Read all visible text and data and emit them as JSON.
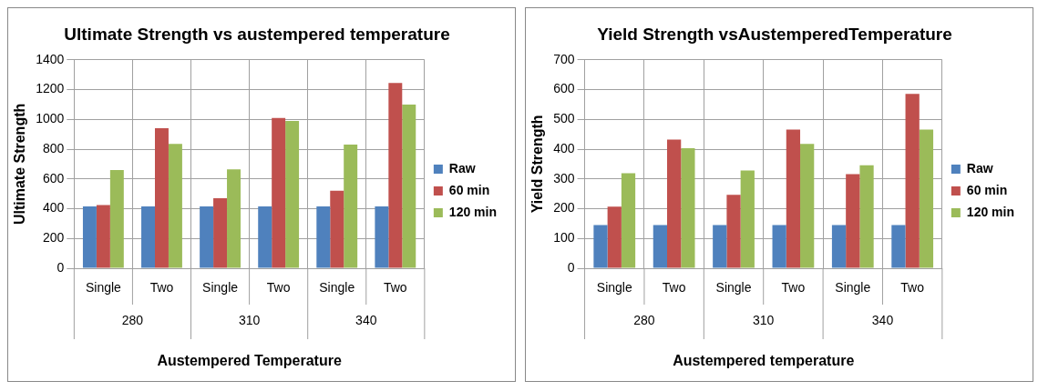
{
  "chart_data": [
    {
      "type": "bar",
      "title": "Ultimate Strength vs austempered temperature",
      "xlabel": "Austempered Temperature",
      "ylabel": "Ultimate Strength",
      "categories": [
        "Single",
        "Two",
        "Single",
        "Two",
        "Single",
        "Two"
      ],
      "annotations": [
        "280",
        "310",
        "340"
      ],
      "series": [
        {
          "name": "Raw",
          "color": "#4f81bd",
          "values": [
            415,
            415,
            415,
            415,
            415,
            415
          ]
        },
        {
          "name": "60 min",
          "color": "#c0504d",
          "values": [
            425,
            940,
            470,
            1010,
            520,
            1245
          ]
        },
        {
          "name": "120 min",
          "color": "#9bbb59",
          "values": [
            660,
            835,
            665,
            990,
            830,
            1100
          ]
        }
      ],
      "ylim": [
        0,
        1400
      ],
      "yticks": [
        0,
        200,
        400,
        600,
        800,
        1000,
        1200,
        1400
      ],
      "grid": true,
      "legend": "right"
    },
    {
      "type": "bar",
      "title": "Yield Strength vsAustemperedTemperature",
      "xlabel": "Austempered temperature",
      "ylabel": "Yield Strength",
      "categories": [
        "Single",
        "Two",
        "Single",
        "Two",
        "Single",
        "Two"
      ],
      "annotations": [
        "280",
        "310",
        "340"
      ],
      "series": [
        {
          "name": "Raw",
          "color": "#4f81bd",
          "values": [
            145,
            145,
            145,
            145,
            145,
            145
          ]
        },
        {
          "name": "60 min",
          "color": "#c0504d",
          "values": [
            207,
            432,
            247,
            466,
            316,
            586
          ]
        },
        {
          "name": "120 min",
          "color": "#9bbb59",
          "values": [
            319,
            403,
            328,
            418,
            346,
            466
          ]
        }
      ],
      "ylim": [
        0,
        700
      ],
      "yticks": [
        0,
        100,
        200,
        300,
        400,
        500,
        600,
        700
      ],
      "grid": true,
      "legend": "right"
    }
  ]
}
